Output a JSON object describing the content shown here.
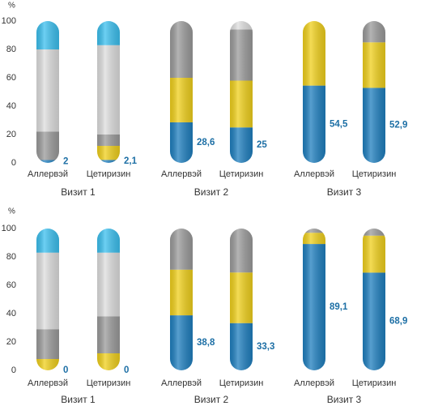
{
  "chart_data": [
    {
      "type": "bar",
      "stacked": true,
      "y_unit": "%",
      "categories": [
        "Аллервэй",
        "Цетиризин",
        "Аллервэй",
        "Цетиризин",
        "Аллервэй",
        "Цетиризин"
      ],
      "groups": [
        "Визит 1",
        "Визит 2",
        "Визит 3"
      ],
      "ylim": [
        0,
        100
      ],
      "yticks": [
        0,
        20,
        40,
        60,
        80,
        100
      ],
      "series": [
        {
          "color": "#1f7fbf",
          "values": [
            2,
            2.1,
            28.6,
            25,
            54.5,
            52.9
          ],
          "value_labels": [
            "2",
            "2,1",
            "28,6",
            "25",
            "54,5",
            "52,9"
          ]
        },
        {
          "color": "#f0d01c",
          "values": [
            0,
            9.9,
            31.4,
            33,
            45.5,
            32.1
          ]
        },
        {
          "color": "#9b9b9b",
          "values": [
            20,
            8,
            40,
            36,
            0,
            15
          ]
        },
        {
          "color": "#dedede",
          "values": [
            58,
            63,
            0,
            6,
            0,
            0
          ]
        },
        {
          "color": "#3cc0ef",
          "values": [
            20,
            17,
            0,
            0,
            0,
            0
          ]
        }
      ]
    },
    {
      "type": "bar",
      "stacked": true,
      "y_unit": "%",
      "categories": [
        "Аллервэй",
        "Цетиризин",
        "Аллервэй",
        "Цетиризин",
        "Аллервэй",
        "Цетиризин"
      ],
      "groups": [
        "Визит 1",
        "Визит 2",
        "Визит 3"
      ],
      "ylim": [
        0,
        100
      ],
      "yticks": [
        0,
        20,
        40,
        60,
        80,
        100
      ],
      "series": [
        {
          "color": "#1f7fbf",
          "values": [
            0,
            0,
            38.8,
            33.3,
            89.1,
            68.9
          ],
          "value_labels": [
            "0",
            "0",
            "38,8",
            "33,3",
            "89,1",
            "68,9"
          ]
        },
        {
          "color": "#f0d01c",
          "values": [
            8,
            12,
            32.2,
            35.7,
            7.9,
            26.1
          ]
        },
        {
          "color": "#9b9b9b",
          "values": [
            21,
            26,
            29,
            31,
            3,
            5
          ]
        },
        {
          "color": "#dedede",
          "values": [
            54,
            45,
            0,
            0,
            0,
            0
          ]
        },
        {
          "color": "#3cc0ef",
          "values": [
            17,
            17,
            0,
            0,
            0,
            0
          ]
        }
      ]
    }
  ]
}
